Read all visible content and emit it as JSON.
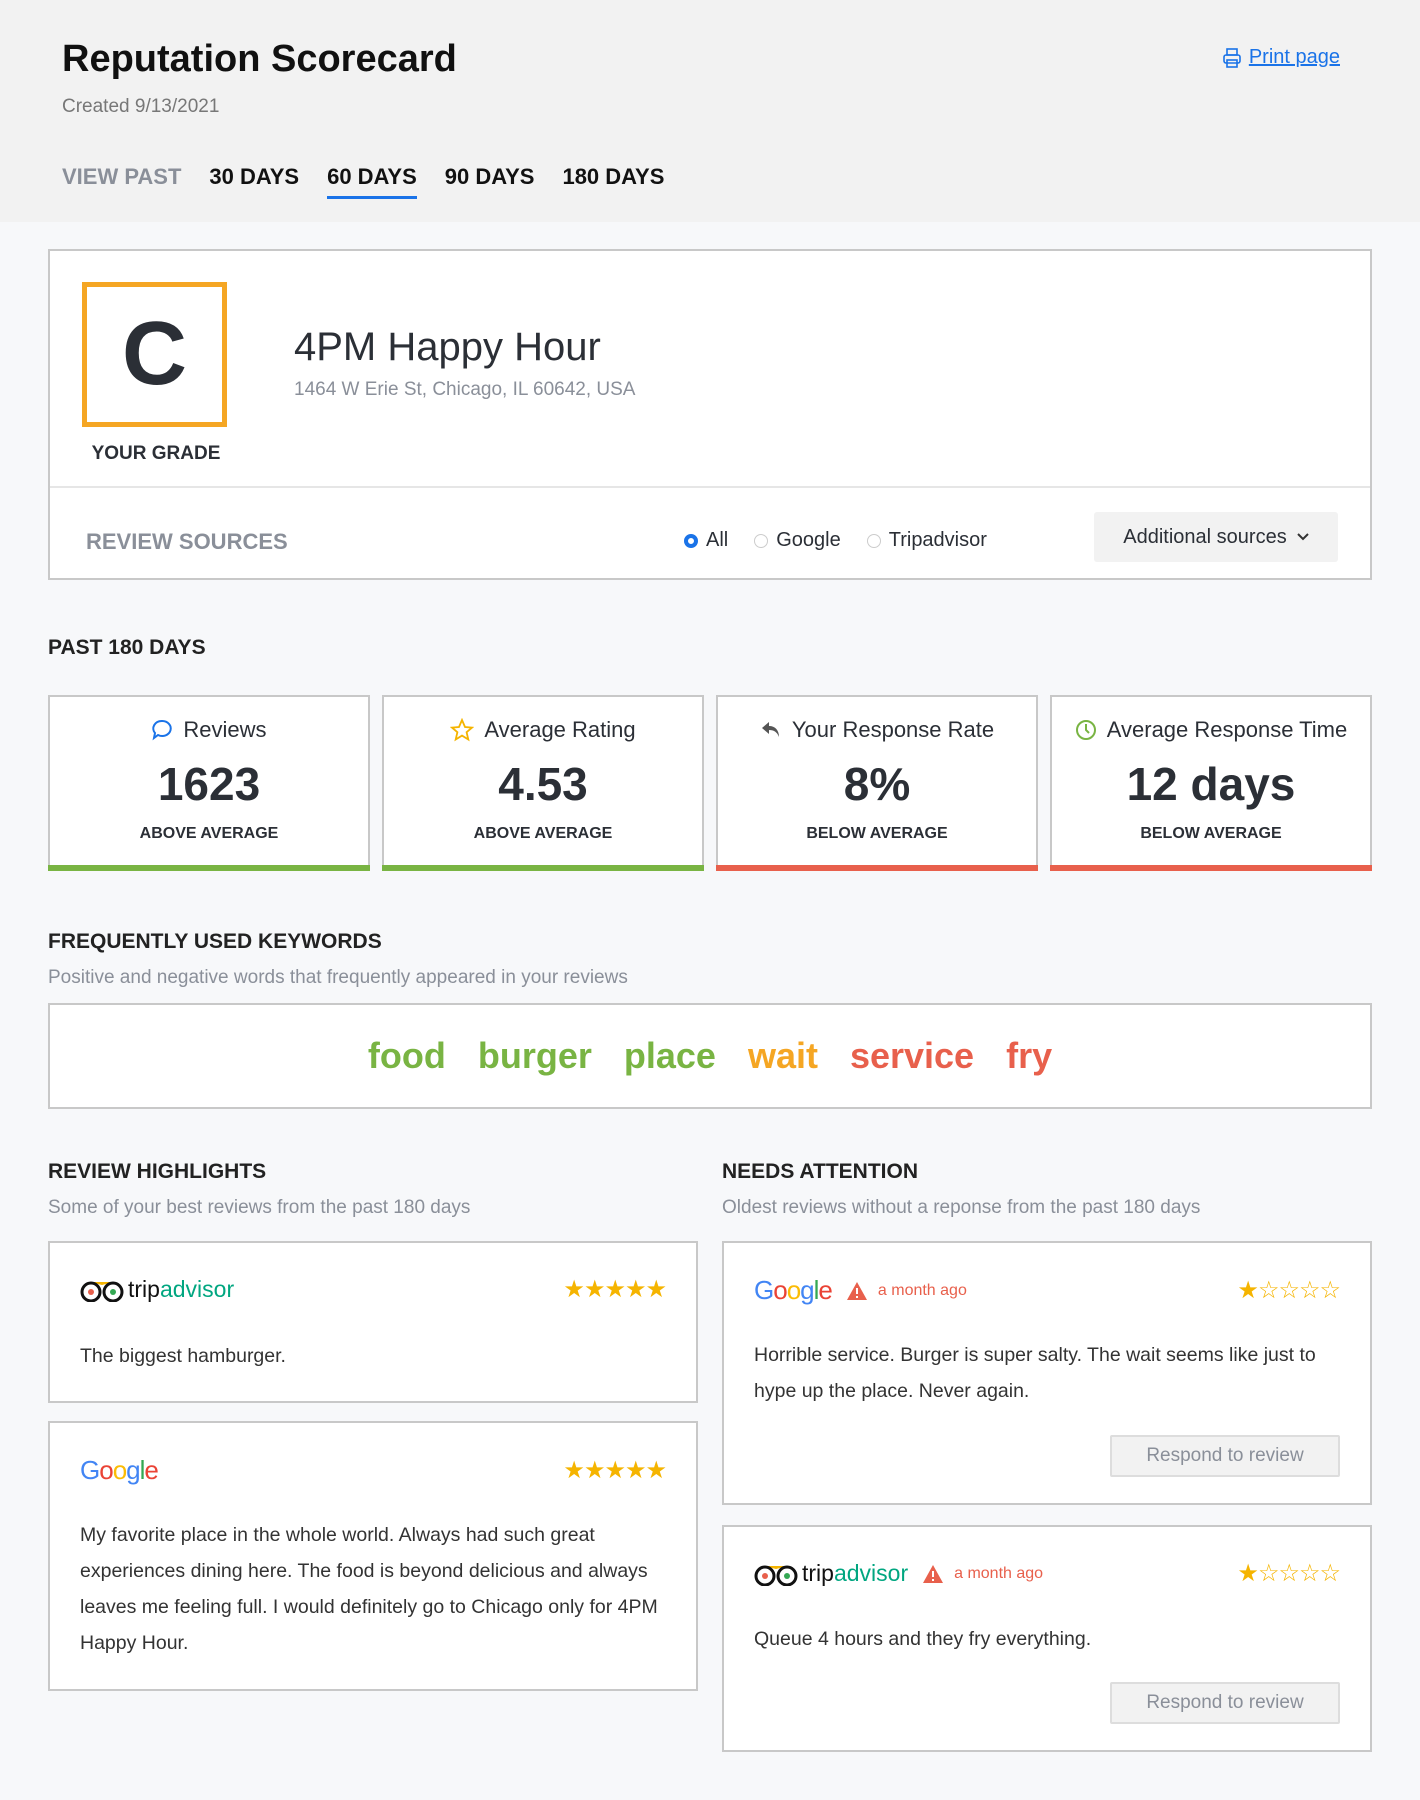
{
  "header": {
    "title": "Reputation Scorecard",
    "created": "Created 9/13/2021",
    "print_label": "Print page",
    "view_past_label": "VIEW PAST",
    "tabs": [
      {
        "label": "30 DAYS"
      },
      {
        "label": "60 DAYS",
        "active": true
      },
      {
        "label": "90 DAYS"
      },
      {
        "label": "180 DAYS"
      }
    ]
  },
  "business": {
    "grade": "C",
    "grade_label": "YOUR GRADE",
    "name": "4PM Happy Hour",
    "address": "1464 W Erie St, Chicago, IL 60642, USA",
    "grade_color": "#f5a623"
  },
  "sources": {
    "label": "REVIEW SOURCES",
    "options": [
      {
        "label": "All",
        "selected": true
      },
      {
        "label": "Google"
      },
      {
        "label": "Tripadvisor"
      }
    ],
    "additional_label": "Additional sources"
  },
  "metrics": {
    "title": "PAST 180 DAYS",
    "items": [
      {
        "icon": "chat-bubble-icon",
        "label": "Reviews",
        "value": "1623",
        "status": "ABOVE AVERAGE",
        "color": "#79b443"
      },
      {
        "icon": "star-icon",
        "label": "Average Rating",
        "value": "4.53",
        "status": "ABOVE AVERAGE",
        "color": "#79b443"
      },
      {
        "icon": "reply-icon",
        "label": "Your Response Rate",
        "value": "8%",
        "status": "BELOW AVERAGE",
        "color": "#e8604c"
      },
      {
        "icon": "clock-icon",
        "label": "Average Response Time",
        "value": "12 days",
        "status": "BELOW AVERAGE",
        "color": "#e8604c"
      }
    ]
  },
  "keywords": {
    "title": "FREQUENTLY USED KEYWORDS",
    "subtitle": "Positive and negative words that frequently appeared in your reviews",
    "words": [
      {
        "text": "food",
        "color": "#79b443"
      },
      {
        "text": "burger",
        "color": "#79b443"
      },
      {
        "text": "place",
        "color": "#79b443"
      },
      {
        "text": "wait",
        "color": "#f5a623"
      },
      {
        "text": "service",
        "color": "#e8604c"
      },
      {
        "text": "fry",
        "color": "#e8604c"
      }
    ]
  },
  "highlights": {
    "title": "REVIEW HIGHLIGHTS",
    "subtitle": "Some of your best reviews from the past 180 days",
    "reviews": [
      {
        "source": "tripadvisor",
        "rating": 5,
        "text": "The biggest hamburger."
      },
      {
        "source": "Google",
        "rating": 5,
        "text": "My favorite place in the whole world. Always had such great experiences dining here. The food is beyond delicious and always leaves me feeling full. I would definitely go to Chicago only for 4PM Happy Hour."
      }
    ]
  },
  "attention": {
    "title": "NEEDS ATTENTION",
    "subtitle": "Oldest reviews without a reponse from the past 180 days",
    "respond_label": "Respond to review",
    "reviews": [
      {
        "source": "Google",
        "rating": 1,
        "age": "a month ago",
        "text": "Horrible service. Burger is super salty. The wait seems like just to hype up the place. Never again."
      },
      {
        "source": "tripadvisor",
        "rating": 1,
        "age": "a month ago",
        "text": "Queue 4 hours and they fry everything."
      }
    ]
  }
}
